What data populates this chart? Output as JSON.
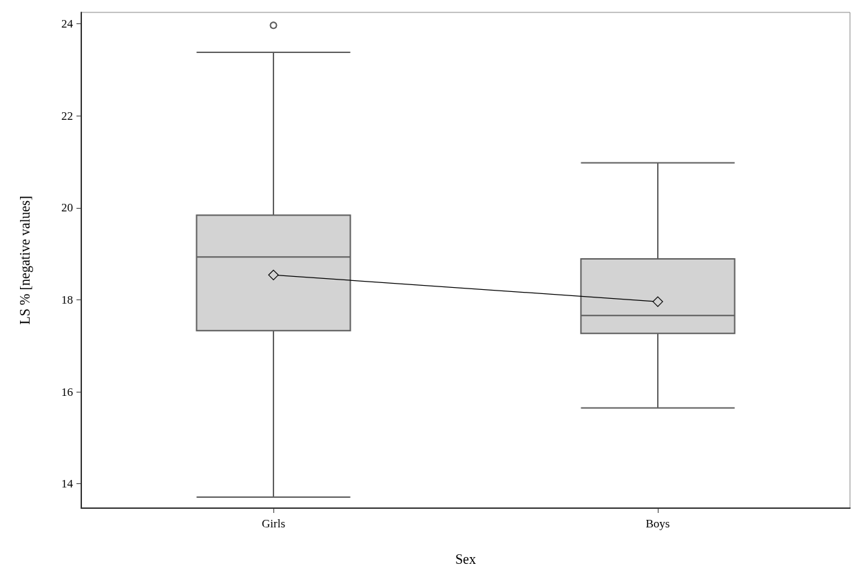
{
  "chart_data": {
    "type": "box",
    "xlabel": "Sex",
    "ylabel": "LS % [negative values]",
    "categories": [
      "Girls",
      "Boys"
    ],
    "ylim": [
      13.47,
      24.25
    ],
    "yticks": [
      14,
      16,
      18,
      20,
      22,
      24
    ],
    "grid": false,
    "series": [
      {
        "color": "#d3d3d3",
        "boxes": [
          {
            "low": 13.71,
            "q1": 17.33,
            "median": 18.93,
            "q3": 19.84,
            "high": 23.38,
            "outliers": [
              23.97
            ]
          },
          {
            "low": 15.65,
            "q1": 17.27,
            "median": 17.66,
            "q3": 18.89,
            "high": 20.98
          }
        ]
      },
      {
        "type": "line",
        "color": "#000000",
        "marker": "diamond",
        "values": [
          18.54,
          17.96
        ]
      }
    ]
  }
}
